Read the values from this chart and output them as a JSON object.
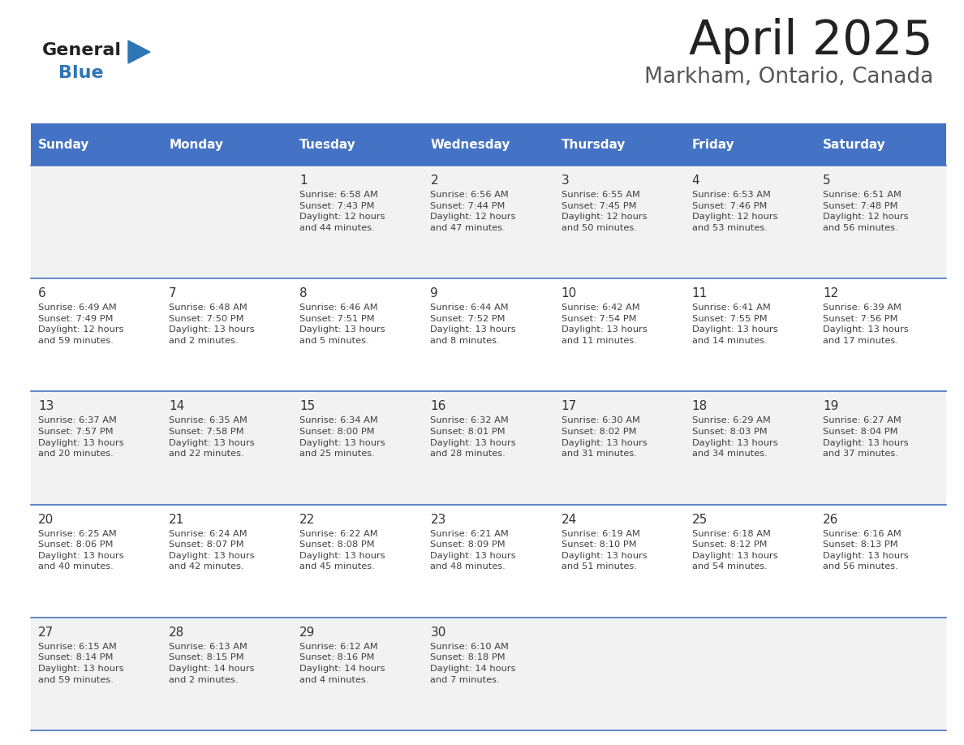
{
  "title": "April 2025",
  "subtitle": "Markham, Ontario, Canada",
  "header_color": "#4472C4",
  "header_text_color": "#FFFFFF",
  "days_of_week": [
    "Sunday",
    "Monday",
    "Tuesday",
    "Wednesday",
    "Thursday",
    "Friday",
    "Saturday"
  ],
  "row_colors": [
    "#F2F2F2",
    "#FFFFFF"
  ],
  "divider_color": "#4472C4",
  "cell_text_color": "#404040",
  "date_text_color": "#333333",
  "calendar": [
    [
      {
        "day": "",
        "info": ""
      },
      {
        "day": "",
        "info": ""
      },
      {
        "day": "1",
        "info": "Sunrise: 6:58 AM\nSunset: 7:43 PM\nDaylight: 12 hours\nand 44 minutes."
      },
      {
        "day": "2",
        "info": "Sunrise: 6:56 AM\nSunset: 7:44 PM\nDaylight: 12 hours\nand 47 minutes."
      },
      {
        "day": "3",
        "info": "Sunrise: 6:55 AM\nSunset: 7:45 PM\nDaylight: 12 hours\nand 50 minutes."
      },
      {
        "day": "4",
        "info": "Sunrise: 6:53 AM\nSunset: 7:46 PM\nDaylight: 12 hours\nand 53 minutes."
      },
      {
        "day": "5",
        "info": "Sunrise: 6:51 AM\nSunset: 7:48 PM\nDaylight: 12 hours\nand 56 minutes."
      }
    ],
    [
      {
        "day": "6",
        "info": "Sunrise: 6:49 AM\nSunset: 7:49 PM\nDaylight: 12 hours\nand 59 minutes."
      },
      {
        "day": "7",
        "info": "Sunrise: 6:48 AM\nSunset: 7:50 PM\nDaylight: 13 hours\nand 2 minutes."
      },
      {
        "day": "8",
        "info": "Sunrise: 6:46 AM\nSunset: 7:51 PM\nDaylight: 13 hours\nand 5 minutes."
      },
      {
        "day": "9",
        "info": "Sunrise: 6:44 AM\nSunset: 7:52 PM\nDaylight: 13 hours\nand 8 minutes."
      },
      {
        "day": "10",
        "info": "Sunrise: 6:42 AM\nSunset: 7:54 PM\nDaylight: 13 hours\nand 11 minutes."
      },
      {
        "day": "11",
        "info": "Sunrise: 6:41 AM\nSunset: 7:55 PM\nDaylight: 13 hours\nand 14 minutes."
      },
      {
        "day": "12",
        "info": "Sunrise: 6:39 AM\nSunset: 7:56 PM\nDaylight: 13 hours\nand 17 minutes."
      }
    ],
    [
      {
        "day": "13",
        "info": "Sunrise: 6:37 AM\nSunset: 7:57 PM\nDaylight: 13 hours\nand 20 minutes."
      },
      {
        "day": "14",
        "info": "Sunrise: 6:35 AM\nSunset: 7:58 PM\nDaylight: 13 hours\nand 22 minutes."
      },
      {
        "day": "15",
        "info": "Sunrise: 6:34 AM\nSunset: 8:00 PM\nDaylight: 13 hours\nand 25 minutes."
      },
      {
        "day": "16",
        "info": "Sunrise: 6:32 AM\nSunset: 8:01 PM\nDaylight: 13 hours\nand 28 minutes."
      },
      {
        "day": "17",
        "info": "Sunrise: 6:30 AM\nSunset: 8:02 PM\nDaylight: 13 hours\nand 31 minutes."
      },
      {
        "day": "18",
        "info": "Sunrise: 6:29 AM\nSunset: 8:03 PM\nDaylight: 13 hours\nand 34 minutes."
      },
      {
        "day": "19",
        "info": "Sunrise: 6:27 AM\nSunset: 8:04 PM\nDaylight: 13 hours\nand 37 minutes."
      }
    ],
    [
      {
        "day": "20",
        "info": "Sunrise: 6:25 AM\nSunset: 8:06 PM\nDaylight: 13 hours\nand 40 minutes."
      },
      {
        "day": "21",
        "info": "Sunrise: 6:24 AM\nSunset: 8:07 PM\nDaylight: 13 hours\nand 42 minutes."
      },
      {
        "day": "22",
        "info": "Sunrise: 6:22 AM\nSunset: 8:08 PM\nDaylight: 13 hours\nand 45 minutes."
      },
      {
        "day": "23",
        "info": "Sunrise: 6:21 AM\nSunset: 8:09 PM\nDaylight: 13 hours\nand 48 minutes."
      },
      {
        "day": "24",
        "info": "Sunrise: 6:19 AM\nSunset: 8:10 PM\nDaylight: 13 hours\nand 51 minutes."
      },
      {
        "day": "25",
        "info": "Sunrise: 6:18 AM\nSunset: 8:12 PM\nDaylight: 13 hours\nand 54 minutes."
      },
      {
        "day": "26",
        "info": "Sunrise: 6:16 AM\nSunset: 8:13 PM\nDaylight: 13 hours\nand 56 minutes."
      }
    ],
    [
      {
        "day": "27",
        "info": "Sunrise: 6:15 AM\nSunset: 8:14 PM\nDaylight: 13 hours\nand 59 minutes."
      },
      {
        "day": "28",
        "info": "Sunrise: 6:13 AM\nSunset: 8:15 PM\nDaylight: 14 hours\nand 2 minutes."
      },
      {
        "day": "29",
        "info": "Sunrise: 6:12 AM\nSunset: 8:16 PM\nDaylight: 14 hours\nand 4 minutes."
      },
      {
        "day": "30",
        "info": "Sunrise: 6:10 AM\nSunset: 8:18 PM\nDaylight: 14 hours\nand 7 minutes."
      },
      {
        "day": "",
        "info": ""
      },
      {
        "day": "",
        "info": ""
      },
      {
        "day": "",
        "info": ""
      }
    ]
  ],
  "fig_width": 11.88,
  "fig_height": 9.18,
  "dpi": 100
}
